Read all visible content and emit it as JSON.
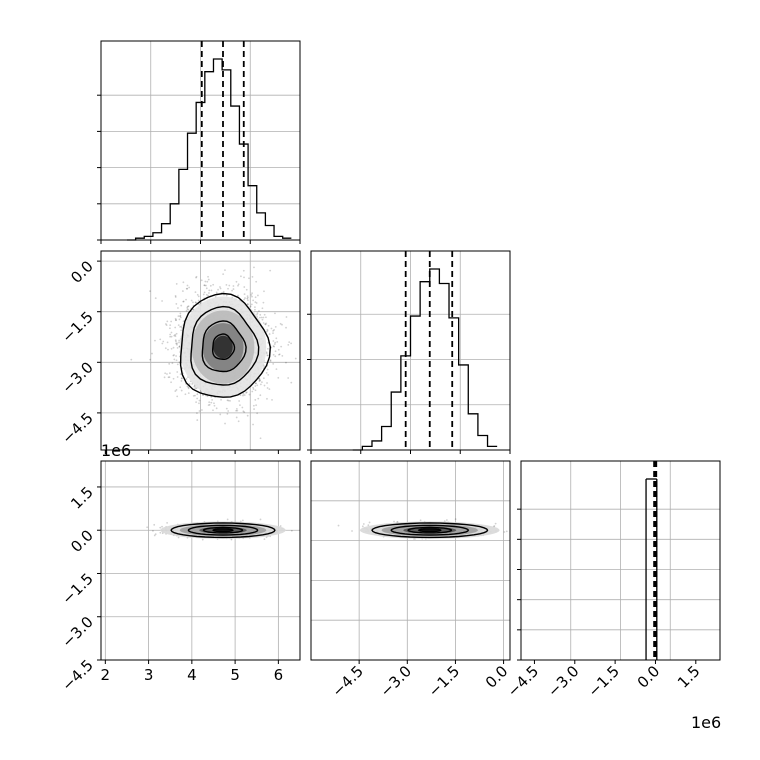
{
  "chart_data": {
    "type": "corner",
    "grid": true,
    "offset_labels": {
      "panel_2_1_y": "1e6",
      "x_axis": "1e6"
    },
    "quantiles_note": "dashed lines",
    "panels": [
      {
        "id": "hist_p1",
        "type": "histogram",
        "xlim": [
          1.9,
          6.5
        ],
        "quantile_lines": [
          4.23,
          4.72,
          5.2
        ],
        "bins_edges": [
          2.5,
          2.7,
          2.9,
          3.1,
          3.3,
          3.5,
          3.7,
          3.9,
          4.1,
          4.3,
          4.5,
          4.7,
          4.9,
          5.1,
          5.3,
          5.5,
          5.7,
          5.9,
          6.1,
          6.3
        ],
        "counts": [
          0,
          0.01,
          0.02,
          0.04,
          0.09,
          0.2,
          0.39,
          0.59,
          0.76,
          0.93,
          1.0,
          0.94,
          0.74,
          0.53,
          0.3,
          0.15,
          0.08,
          0.02,
          0.01
        ],
        "yticks_count": 5
      },
      {
        "id": "scatter_p1_p2",
        "type": "2d-density",
        "xlim": [
          1.9,
          6.5
        ],
        "ylim": [
          -5.6,
          0.3
        ],
        "y_ticks": [
          0.0,
          -1.5,
          -3.0,
          -4.5
        ],
        "y_tick_labels": [
          "0.0",
          "−1.5",
          "−3.0",
          "−4.5"
        ],
        "center": [
          4.72,
          -2.55
        ],
        "spread": [
          0.5,
          0.75
        ]
      },
      {
        "id": "hist_p2",
        "type": "histogram",
        "xlim": [
          -6.0,
          0.2
        ],
        "quantile_lines": [
          -3.05,
          -2.3,
          -1.6
        ],
        "bins_edges": [
          -4.7,
          -4.4,
          -4.1,
          -3.8,
          -3.5,
          -3.2,
          -2.9,
          -2.6,
          -2.3,
          -2.0,
          -1.7,
          -1.4,
          -1.1,
          -0.8,
          -0.5,
          -0.2
        ],
        "counts": [
          0.0,
          0.02,
          0.05,
          0.13,
          0.32,
          0.52,
          0.74,
          0.93,
          1.0,
          0.92,
          0.73,
          0.47,
          0.2,
          0.08,
          0.02
        ],
        "yticks_count": 4
      },
      {
        "id": "scatter_p1_p3",
        "type": "2d-density",
        "xlim": [
          1.9,
          6.5
        ],
        "ylim": [
          -4.5,
          2.4
        ],
        "y_ticks": [
          1.5,
          0.0,
          -1.5,
          -3.0,
          -4.5
        ],
        "y_tick_labels": [
          "1.5",
          "0.0",
          "−1.5",
          "−3.0",
          "−4.5"
        ],
        "x_ticks": [
          2,
          3,
          4,
          5,
          6
        ],
        "x_tick_labels": [
          "2",
          "3",
          "4",
          "5",
          "6"
        ],
        "center": [
          4.72,
          0.0
        ],
        "spread": [
          0.5,
          0.05
        ]
      },
      {
        "id": "scatter_p2_p3",
        "type": "2d-density",
        "xlim": [
          -6.0,
          0.2
        ],
        "ylim": [
          -4.5,
          2.4
        ],
        "x_ticks": [
          -4.5,
          -3.0,
          -1.5,
          0.0
        ],
        "x_tick_labels": [
          "−4.5",
          "−3.0",
          "−1.5",
          "0.0"
        ],
        "center": [
          -2.3,
          0.0
        ],
        "spread": [
          0.75,
          0.05
        ]
      },
      {
        "id": "hist_p3",
        "type": "histogram",
        "xlim": [
          -5.0,
          2.4
        ],
        "x_ticks": [
          -4.5,
          -3.0,
          -1.5,
          0.0,
          1.5
        ],
        "x_tick_labels": [
          "−4.5",
          "−3.0",
          "−1.5",
          "0.0",
          "1.5"
        ],
        "quantile_lines": [
          -0.05,
          0.0,
          0.03
        ],
        "bins_edges": [
          -0.35,
          0.05
        ],
        "counts": [
          1.0
        ],
        "yticks_count": 6
      }
    ]
  }
}
